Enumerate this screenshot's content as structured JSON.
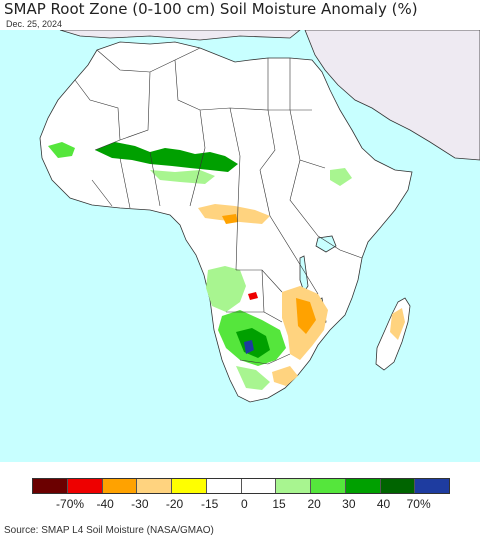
{
  "header": {
    "title": "SMAP Root Zone (0-100 cm) Soil Moisture Anomaly (%)",
    "date": "Dec. 25, 2024"
  },
  "legend": {
    "colors": [
      "#6b0000",
      "#ee0000",
      "#ffa200",
      "#ffd37f",
      "#ffff00",
      "#ffffff",
      "#ffffff",
      "#a8f590",
      "#55e63c",
      "#00a000",
      "#006400",
      "#1e3ca0"
    ],
    "tick_labels": [
      "-70%",
      "-40",
      "-30",
      "-20",
      "-15",
      "0",
      "15",
      "20",
      "30",
      "40",
      "70%"
    ]
  },
  "map": {
    "colors": {
      "ocean": "#c8ffff",
      "land": "#ffffff",
      "no_data": "#eeeaf2",
      "border": "#333333",
      "wet_light": "#a8f590",
      "wet_mid": "#55e63c",
      "wet_strong": "#00a000",
      "wet_dark": "#006400",
      "wet_extreme": "#1e3ca0",
      "dry_light": "#ffd37f",
      "dry_mid": "#ffa200",
      "dry_strong": "#ee0000"
    }
  },
  "footer": {
    "source": "Source: SMAP L4 Soil Moisture (NASA/GMAO)"
  }
}
